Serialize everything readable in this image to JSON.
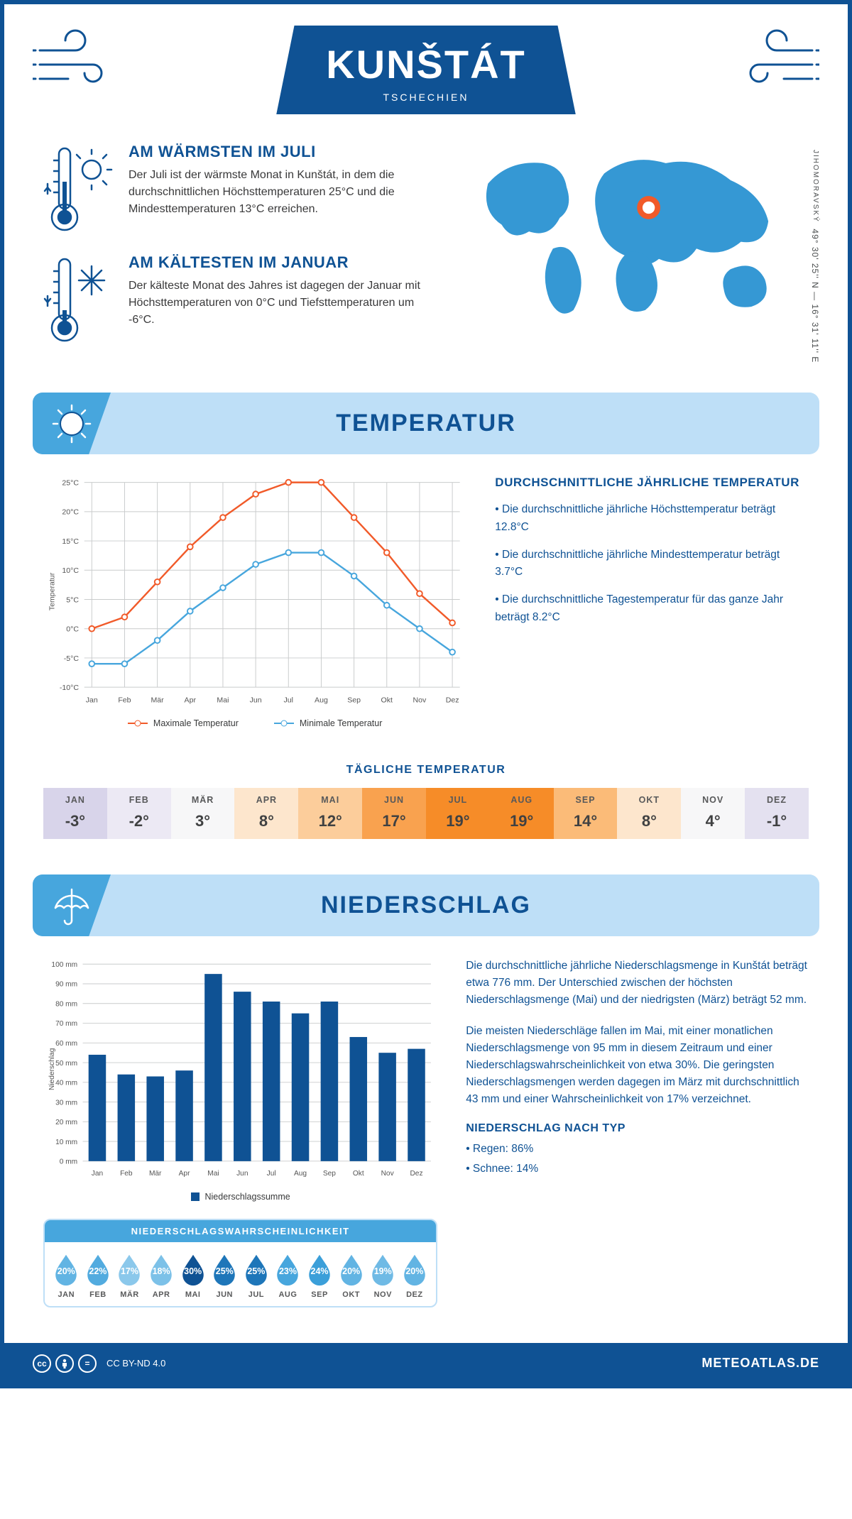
{
  "header": {
    "title": "KUNŠTÁT",
    "country": "TSCHECHIEN"
  },
  "intro": {
    "warm": {
      "title": "AM WÄRMSTEN IM JULI",
      "text": "Der Juli ist der wärmste Monat in Kunštát, in dem die durchschnittlichen Höchsttemperaturen 25°C und die Mindesttemperaturen 13°C erreichen."
    },
    "cold": {
      "title": "AM KÄLTESTEN IM JANUAR",
      "text": "Der kälteste Monat des Jahres ist dagegen der Januar mit Höchsttemperaturen von 0°C und Tiefsttemperaturen um -6°C."
    },
    "coords": "49° 30' 25'' N — 16° 31' 11'' E",
    "region": "JIHOMORAVSKÝ"
  },
  "temperature": {
    "section_title": "TEMPERATUR",
    "ylabel": "Temperatur",
    "months": [
      "Jan",
      "Feb",
      "Mär",
      "Apr",
      "Mai",
      "Jun",
      "Jul",
      "Aug",
      "Sep",
      "Okt",
      "Nov",
      "Dez"
    ],
    "max_series": [
      0,
      2,
      8,
      14,
      19,
      23,
      25,
      25,
      19,
      13,
      6,
      1
    ],
    "min_series": [
      -6,
      -6,
      -2,
      3,
      7,
      11,
      13,
      13,
      9,
      4,
      0,
      -4
    ],
    "ylim": [
      -10,
      25
    ],
    "ytick_step": 5,
    "max_color": "#f15a29",
    "min_color": "#47a6dd",
    "grid_color": "#c9cbcc",
    "legend_max": "Maximale Temperatur",
    "legend_min": "Minimale Temperatur",
    "desc_title": "DURCHSCHNITTLICHE JÄHRLICHE TEMPERATUR",
    "desc1": "• Die durchschnittliche jährliche Höchsttemperatur beträgt 12.8°C",
    "desc2": "• Die durchschnittliche jährliche Mindesttemperatur beträgt 3.7°C",
    "desc3": "• Die durchschnittliche Tagestemperatur für das ganze Jahr beträgt 8.2°C"
  },
  "daily": {
    "title": "TÄGLICHE TEMPERATUR",
    "months": [
      "JAN",
      "FEB",
      "MÄR",
      "APR",
      "MAI",
      "JUN",
      "JUL",
      "AUG",
      "SEP",
      "OKT",
      "NOV",
      "DEZ"
    ],
    "values": [
      "-3°",
      "-2°",
      "3°",
      "8°",
      "12°",
      "17°",
      "19°",
      "19°",
      "14°",
      "8°",
      "4°",
      "-1°"
    ],
    "colors": [
      "#d8d4ea",
      "#ece9f4",
      "#f7f7f8",
      "#fde6cd",
      "#fccd9b",
      "#f9a24f",
      "#f68c28",
      "#f68c28",
      "#fbbb78",
      "#fde6cd",
      "#f7f7f8",
      "#e4e1f0"
    ]
  },
  "precip": {
    "section_title": "NIEDERSCHLAG",
    "ylabel": "Niederschlag",
    "months": [
      "Jan",
      "Feb",
      "Mär",
      "Apr",
      "Mai",
      "Jun",
      "Jul",
      "Aug",
      "Sep",
      "Okt",
      "Nov",
      "Dez"
    ],
    "values": [
      54,
      44,
      43,
      46,
      95,
      86,
      81,
      75,
      81,
      63,
      55,
      57
    ],
    "ylim": [
      0,
      100
    ],
    "ytick_step": 10,
    "bar_color": "#0f5294",
    "grid_color": "#c9cbcc",
    "legend": "Niederschlagssumme",
    "text1": "Die durchschnittliche jährliche Niederschlagsmenge in Kunštát beträgt etwa 776 mm. Der Unterschied zwischen der höchsten Niederschlagsmenge (Mai) und der niedrigsten (März) beträgt 52 mm.",
    "text2": "Die meisten Niederschläge fallen im Mai, mit einer monatlichen Niederschlagsmenge von 95 mm in diesem Zeitraum und einer Niederschlagswahrscheinlichkeit von etwa 30%. Die geringsten Niederschlagsmengen werden dagegen im März mit durchschnittlich 43 mm und einer Wahrscheinlichkeit von 17% verzeichnet.",
    "type_title": "NIEDERSCHLAG NACH TYP",
    "type1": "• Regen: 86%",
    "type2": "• Schnee: 14%"
  },
  "prob": {
    "title": "NIEDERSCHLAGSWAHRSCHEINLICHKEIT",
    "months": [
      "JAN",
      "FEB",
      "MÄR",
      "APR",
      "MAI",
      "JUN",
      "JUL",
      "AUG",
      "SEP",
      "OKT",
      "NOV",
      "DEZ"
    ],
    "values": [
      "20%",
      "22%",
      "17%",
      "18%",
      "30%",
      "25%",
      "25%",
      "23%",
      "24%",
      "20%",
      "19%",
      "20%"
    ],
    "colors": [
      "#62b4e3",
      "#52abdf",
      "#8bc8eb",
      "#7cc1e8",
      "#0f5294",
      "#1e76b9",
      "#1e76b9",
      "#47a6dd",
      "#3b9fd9",
      "#62b4e3",
      "#6fbae5",
      "#62b4e3"
    ]
  },
  "footer": {
    "license": "CC BY-ND 4.0",
    "site": "METEOATLAS.DE"
  },
  "colors": {
    "primary": "#0f5294",
    "accent": "#47a6dd",
    "lightblue": "#bedff7"
  }
}
